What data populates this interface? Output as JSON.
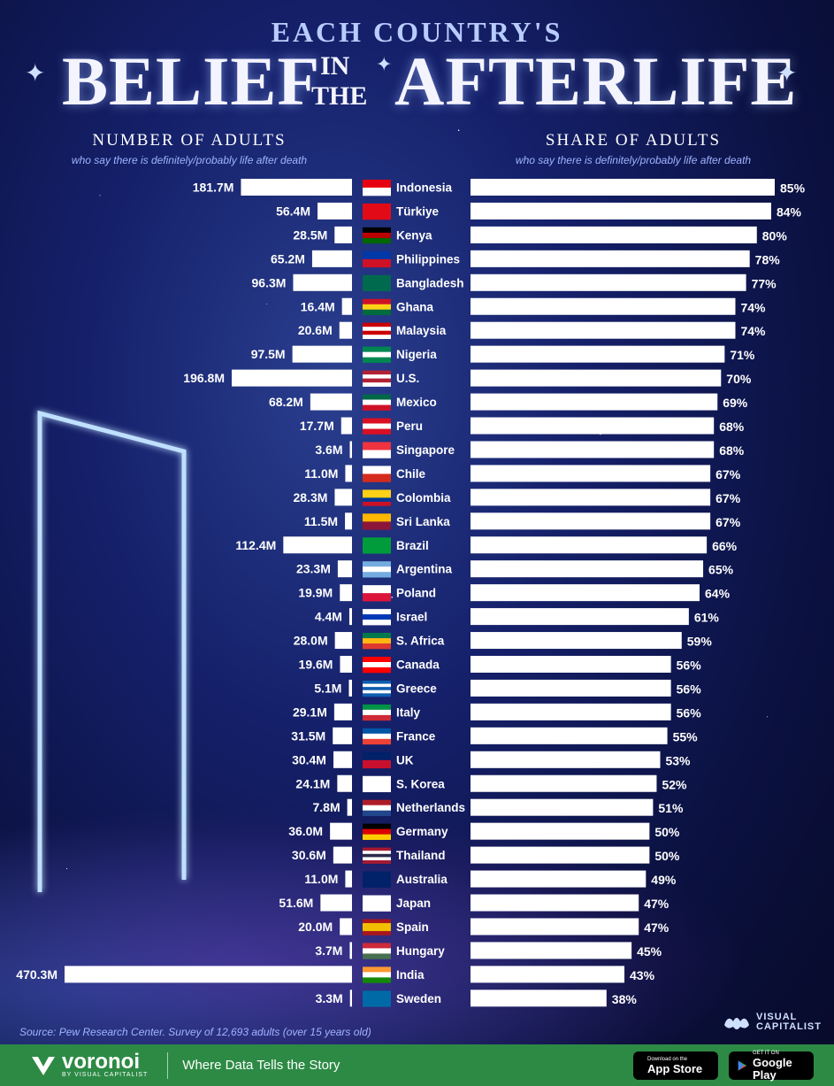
{
  "header": {
    "top_line": "EACH COUNTRY'S",
    "word_left": "BELIEF",
    "word_in": "IN",
    "word_the": "THE",
    "word_right": "AFTERLIFE"
  },
  "left_panel": {
    "title": "NUMBER OF ADULTS",
    "subtitle": "who say there is definitely/probably life after death"
  },
  "right_panel": {
    "title": "SHARE OF ADULTS",
    "subtitle": "who say there is definitely/probably life after death"
  },
  "chart_data": {
    "type": "bar",
    "categories": [
      "Indonesia",
      "Türkiye",
      "Kenya",
      "Philippines",
      "Bangladesh",
      "Ghana",
      "Malaysia",
      "Nigeria",
      "U.S.",
      "Mexico",
      "Peru",
      "Singapore",
      "Chile",
      "Colombia",
      "Sri Lanka",
      "Brazil",
      "Argentina",
      "Poland",
      "Israel",
      "S. Africa",
      "Canada",
      "Greece",
      "Italy",
      "France",
      "UK",
      "S. Korea",
      "Netherlands",
      "Germany",
      "Thailand",
      "Australia",
      "Japan",
      "Spain",
      "Hungary",
      "India",
      "Sweden"
    ],
    "series": [
      {
        "name": "NUMBER OF ADULTS",
        "values": [
          181.7,
          56.4,
          28.5,
          65.2,
          96.3,
          16.4,
          20.6,
          97.5,
          196.8,
          68.2,
          17.7,
          3.6,
          11.0,
          28.3,
          11.5,
          112.4,
          23.3,
          19.9,
          4.4,
          28.0,
          19.6,
          5.1,
          29.1,
          31.5,
          30.4,
          24.1,
          7.8,
          36.0,
          30.6,
          11.0,
          51.6,
          20.0,
          3.7,
          470.3,
          3.3
        ],
        "labels": [
          "181.7M",
          "56.4M",
          "28.5M",
          "65.2M",
          "96.3M",
          "16.4M",
          "20.6M",
          "97.5M",
          "196.8M",
          "68.2M",
          "17.7M",
          "3.6M",
          "11.0M",
          "28.3M",
          "11.5M",
          "112.4M",
          "23.3M",
          "19.9M",
          "4.4M",
          "28.0M",
          "19.6M",
          "5.1M",
          "29.1M",
          "31.5M",
          "30.4M",
          "24.1M",
          "7.8M",
          "36.0M",
          "30.6M",
          "11.0M",
          "51.6M",
          "20.0M",
          "3.7M",
          "470.3M",
          "3.3M"
        ]
      },
      {
        "name": "SHARE OF ADULTS",
        "values": [
          85,
          84,
          80,
          78,
          77,
          74,
          74,
          71,
          70,
          69,
          68,
          68,
          67,
          67,
          67,
          66,
          65,
          64,
          61,
          59,
          56,
          56,
          56,
          55,
          53,
          52,
          51,
          50,
          50,
          49,
          47,
          47,
          45,
          43,
          38
        ],
        "labels": [
          "85%",
          "84%",
          "80%",
          "78%",
          "77%",
          "74%",
          "74%",
          "71%",
          "70%",
          "69%",
          "68%",
          "68%",
          "67%",
          "67%",
          "67%",
          "66%",
          "65%",
          "64%",
          "61%",
          "59%",
          "56%",
          "56%",
          "56%",
          "55%",
          "53%",
          "52%",
          "51%",
          "50%",
          "50%",
          "49%",
          "47%",
          "47%",
          "45%",
          "43%",
          "38%"
        ]
      }
    ],
    "left_bar_color": "#ffffff",
    "right_bar_color": "#ffffff"
  },
  "flags": [
    [
      "#e70011",
      "#ffffff"
    ],
    [
      "#e30a17",
      "#e30a17"
    ],
    [
      "#000000",
      "#bb0000",
      "#006600"
    ],
    [
      "#0038a8",
      "#ce1126"
    ],
    [
      "#006a4e",
      "#006a4e"
    ],
    [
      "#ce1126",
      "#fcd116",
      "#006b3f"
    ],
    [
      "#cc0001",
      "#ffffff",
      "#cc0001",
      "#ffffff"
    ],
    [
      "#008751",
      "#ffffff",
      "#008751"
    ],
    [
      "#b22234",
      "#ffffff",
      "#b22234",
      "#ffffff"
    ],
    [
      "#006847",
      "#ffffff",
      "#ce1126"
    ],
    [
      "#d91023",
      "#ffffff",
      "#d91023"
    ],
    [
      "#ef3340",
      "#ffffff"
    ],
    [
      "#ffffff",
      "#d52b1e"
    ],
    [
      "#fcd116",
      "#fcd116",
      "#003893",
      "#ce1126"
    ],
    [
      "#ffb700",
      "#8d153a"
    ],
    [
      "#009c3b",
      "#009c3b"
    ],
    [
      "#74acdf",
      "#ffffff",
      "#74acdf"
    ],
    [
      "#ffffff",
      "#dc143c"
    ],
    [
      "#ffffff",
      "#0038b8",
      "#ffffff"
    ],
    [
      "#007a4d",
      "#ffb612",
      "#de3831"
    ],
    [
      "#ff0000",
      "#ffffff",
      "#ff0000"
    ],
    [
      "#0d5eaf",
      "#ffffff",
      "#0d5eaf",
      "#ffffff",
      "#0d5eaf"
    ],
    [
      "#009246",
      "#ffffff",
      "#ce2b37"
    ],
    [
      "#0055a4",
      "#ffffff",
      "#ef4135"
    ],
    [
      "#012169",
      "#c8102e"
    ],
    [
      "#ffffff",
      "#ffffff"
    ],
    [
      "#ae1c28",
      "#ffffff",
      "#21468b"
    ],
    [
      "#000000",
      "#dd0000",
      "#ffce00"
    ],
    [
      "#a51931",
      "#ffffff",
      "#2d2a4a",
      "#ffffff",
      "#a51931"
    ],
    [
      "#012169",
      "#012169"
    ],
    [
      "#ffffff",
      "#ffffff"
    ],
    [
      "#aa151b",
      "#f1bf00",
      "#f1bf00",
      "#aa151b"
    ],
    [
      "#ce2939",
      "#ffffff",
      "#477050"
    ],
    [
      "#ff9933",
      "#ffffff",
      "#138808"
    ],
    [
      "#006aa7",
      "#006aa7"
    ]
  ],
  "source": "Source: Pew Research Center. Survey of 12,693 adults (over 15 years old)",
  "brand": {
    "vc_line1": "VISUAL",
    "vc_line2": "CAPITALIST",
    "voronoi_name": "voronoi",
    "voronoi_by": "BY VISUAL CAPITALIST",
    "tagline": "Where Data Tells the Story",
    "appstore_small": "Download on the",
    "appstore_big": "App Store",
    "gplay_small": "GET IT ON",
    "gplay_big": "Google Play"
  }
}
